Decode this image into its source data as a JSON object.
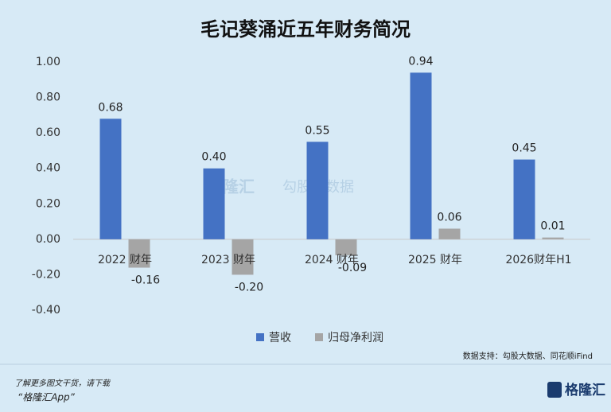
{
  "chart_data": {
    "type": "bar",
    "title": "毛记葵涌近五年财务简况",
    "categories": [
      "2022 财年",
      "2023 财年",
      "2024 财年",
      "2025 财年",
      "2026财年H1"
    ],
    "series": [
      {
        "name": "营收",
        "color": "#4472c4",
        "values": [
          0.68,
          0.4,
          0.55,
          0.94,
          0.45
        ],
        "value_labels": [
          "0.68",
          "0.40",
          "0.55",
          "0.94",
          "0.45"
        ]
      },
      {
        "name": "归母净利润",
        "color": "#a5a5a5",
        "values": [
          -0.16,
          -0.2,
          -0.09,
          0.06,
          0.01
        ],
        "value_labels": [
          "-0.16",
          "-0.20",
          "-0.09",
          "0.06",
          "0.01"
        ]
      }
    ],
    "ylim": [
      -0.4,
      1.0
    ],
    "yticks": [
      {
        "value": -0.4,
        "label": "-0.40"
      },
      {
        "value": -0.2,
        "label": "-0.20"
      },
      {
        "value": 0,
        "label": "0.00"
      },
      {
        "value": 0.2,
        "label": "0.20"
      },
      {
        "value": 0.4,
        "label": "0.40"
      },
      {
        "value": 0.6,
        "label": "0.60"
      },
      {
        "value": 0.8,
        "label": "0.80"
      },
      {
        "value": 1.0,
        "label": "1.00"
      }
    ],
    "grid": false,
    "legend": "bottom",
    "source": "数据支持：勾股大数据、同花顺iFind",
    "watermark": [
      "格隆汇",
      "勾股大数据"
    ],
    "footer": {
      "line1": "了解更多图文干货，请下载",
      "line2": "“格隆汇App”",
      "logo": "格隆汇"
    }
  }
}
